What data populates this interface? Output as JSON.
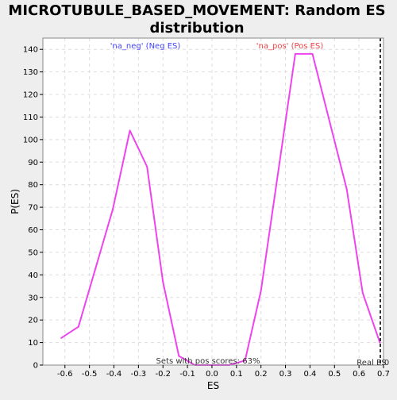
{
  "chart_data": {
    "type": "line",
    "title_lines": [
      "MICROTUBULE_BASED_MOVEMENT: Random ES",
      "distribution"
    ],
    "xlabel": "ES",
    "ylabel": "P(ES)",
    "xlim": [
      -0.69,
      0.7
    ],
    "ylim": [
      0,
      145
    ],
    "x_ticks": [
      -0.6,
      -0.5,
      -0.4,
      -0.3,
      -0.2,
      -0.1,
      0.0,
      0.1,
      0.2,
      0.3,
      0.4,
      0.5,
      0.6,
      0.7
    ],
    "x_tick_labels": [
      "-0.6",
      "-0.5",
      "-0.4",
      "-0.3",
      "-0.2",
      "-0.1",
      "0.0",
      "0.1",
      "0.2",
      "0.3",
      "0.4",
      "0.5",
      "0.6",
      "0.7"
    ],
    "y_ticks": [
      0,
      10,
      20,
      30,
      40,
      50,
      60,
      70,
      80,
      90,
      100,
      110,
      120,
      130,
      140
    ],
    "y_tick_labels": [
      "0",
      "10",
      "20",
      "30",
      "40",
      "50",
      "60",
      "70",
      "80",
      "90",
      "100",
      "110",
      "120",
      "130",
      "140"
    ],
    "grid": true,
    "series": [
      {
        "color": "#ee44ee",
        "x": [
          -0.615,
          -0.545,
          -0.475,
          -0.405,
          -0.335,
          -0.265,
          -0.2,
          -0.135,
          -0.07,
          0.0,
          0.07,
          0.135,
          0.2,
          0.34,
          0.41,
          0.48,
          0.55,
          0.615,
          0.685
        ],
        "y": [
          12,
          17,
          43,
          69,
          104,
          88,
          37,
          4,
          0,
          0,
          0,
          2,
          33,
          138,
          138,
          108,
          78,
          32,
          10
        ]
      }
    ],
    "annotations": {
      "neg_label": "'na_neg' (Neg ES)",
      "neg_color": "#4444ff",
      "pos_label": "'na_pos' (Pos ES)",
      "pos_color": "#ee4444",
      "pos_scores_text": "Sets with pos scores: 63%",
      "real_es_label": "Real ES",
      "real_es_value": "0",
      "real_es_x": 0.7
    }
  }
}
